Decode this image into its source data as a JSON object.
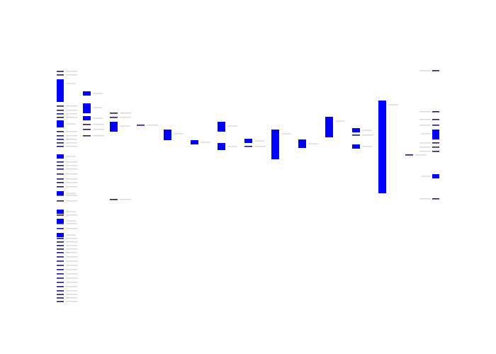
{
  "diagram": {
    "type": "sankey-like flow diagram",
    "node_color": "#0000ff",
    "thin_node_color": "#1a1a6e",
    "background": "#ffffff",
    "label_color": "#999999",
    "columns": [
      {
        "id": "col-1",
        "nodes": [
          {
            "size": "thin"
          },
          {
            "size": "thin"
          },
          {
            "size": "large"
          },
          {
            "size": "thin"
          },
          {
            "size": "thin"
          },
          {
            "size": "thin"
          },
          {
            "size": "thin"
          },
          {
            "size": "medium"
          },
          {
            "size": "thin"
          },
          {
            "size": "thin"
          },
          {
            "size": "thin"
          },
          {
            "size": "thin"
          },
          {
            "size": "thin"
          },
          {
            "size": "small"
          },
          {
            "size": "thin"
          },
          {
            "size": "thin"
          },
          {
            "size": "thin"
          },
          {
            "size": "thin"
          },
          {
            "size": "thin"
          },
          {
            "size": "thin"
          },
          {
            "size": "thin"
          },
          {
            "size": "small"
          },
          {
            "size": "thin"
          },
          {
            "size": "thin"
          },
          {
            "size": "small"
          },
          {
            "size": "thin"
          },
          {
            "size": "small"
          },
          {
            "size": "thin"
          },
          {
            "size": "thin"
          },
          {
            "size": "small"
          },
          {
            "size": "thin"
          },
          {
            "size": "thin"
          },
          {
            "size": "thin"
          },
          {
            "size": "thin"
          },
          {
            "size": "thin"
          },
          {
            "size": "thin"
          },
          {
            "size": "thin"
          },
          {
            "size": "thin"
          },
          {
            "size": "thin"
          },
          {
            "size": "thin"
          },
          {
            "size": "thin"
          },
          {
            "size": "thin"
          },
          {
            "size": "thin"
          },
          {
            "size": "thin"
          },
          {
            "size": "thin"
          },
          {
            "size": "thin"
          },
          {
            "size": "thin"
          }
        ]
      },
      {
        "id": "col-2",
        "nodes": [
          {
            "size": "small"
          },
          {
            "size": "medium"
          },
          {
            "size": "small"
          },
          {
            "size": "thin"
          },
          {
            "size": "thin"
          },
          {
            "size": "thin"
          }
        ]
      },
      {
        "id": "col-3",
        "nodes": [
          {
            "size": "thin"
          },
          {
            "size": "thin"
          },
          {
            "size": "medium"
          },
          {
            "size": "thin"
          }
        ]
      },
      {
        "id": "col-4",
        "nodes": [
          {
            "size": "thin"
          }
        ]
      },
      {
        "id": "col-5",
        "nodes": [
          {
            "size": "medium"
          }
        ]
      },
      {
        "id": "col-6",
        "nodes": [
          {
            "size": "small"
          }
        ]
      },
      {
        "id": "col-7",
        "nodes": [
          {
            "size": "medium"
          },
          {
            "size": "medium"
          }
        ]
      },
      {
        "id": "col-8",
        "nodes": [
          {
            "size": "small"
          },
          {
            "size": "thin"
          }
        ]
      },
      {
        "id": "col-9",
        "nodes": [
          {
            "size": "large"
          }
        ]
      },
      {
        "id": "col-10",
        "nodes": [
          {
            "size": "medium"
          }
        ]
      },
      {
        "id": "col-11",
        "nodes": [
          {
            "size": "large"
          }
        ]
      },
      {
        "id": "col-12",
        "nodes": [
          {
            "size": "small"
          },
          {
            "size": "thin"
          },
          {
            "size": "small"
          }
        ]
      },
      {
        "id": "col-13",
        "nodes": [
          {
            "size": "xlarge"
          }
        ]
      },
      {
        "id": "col-14",
        "nodes": [
          {
            "size": "thin"
          }
        ]
      },
      {
        "id": "col-15",
        "nodes": [
          {
            "size": "thin"
          },
          {
            "size": "thin"
          },
          {
            "size": "thin"
          },
          {
            "size": "thin"
          },
          {
            "size": "medium"
          },
          {
            "size": "thin"
          },
          {
            "size": "thin"
          },
          {
            "size": "thin"
          },
          {
            "size": "small"
          },
          {
            "size": "thin"
          }
        ]
      }
    ]
  }
}
